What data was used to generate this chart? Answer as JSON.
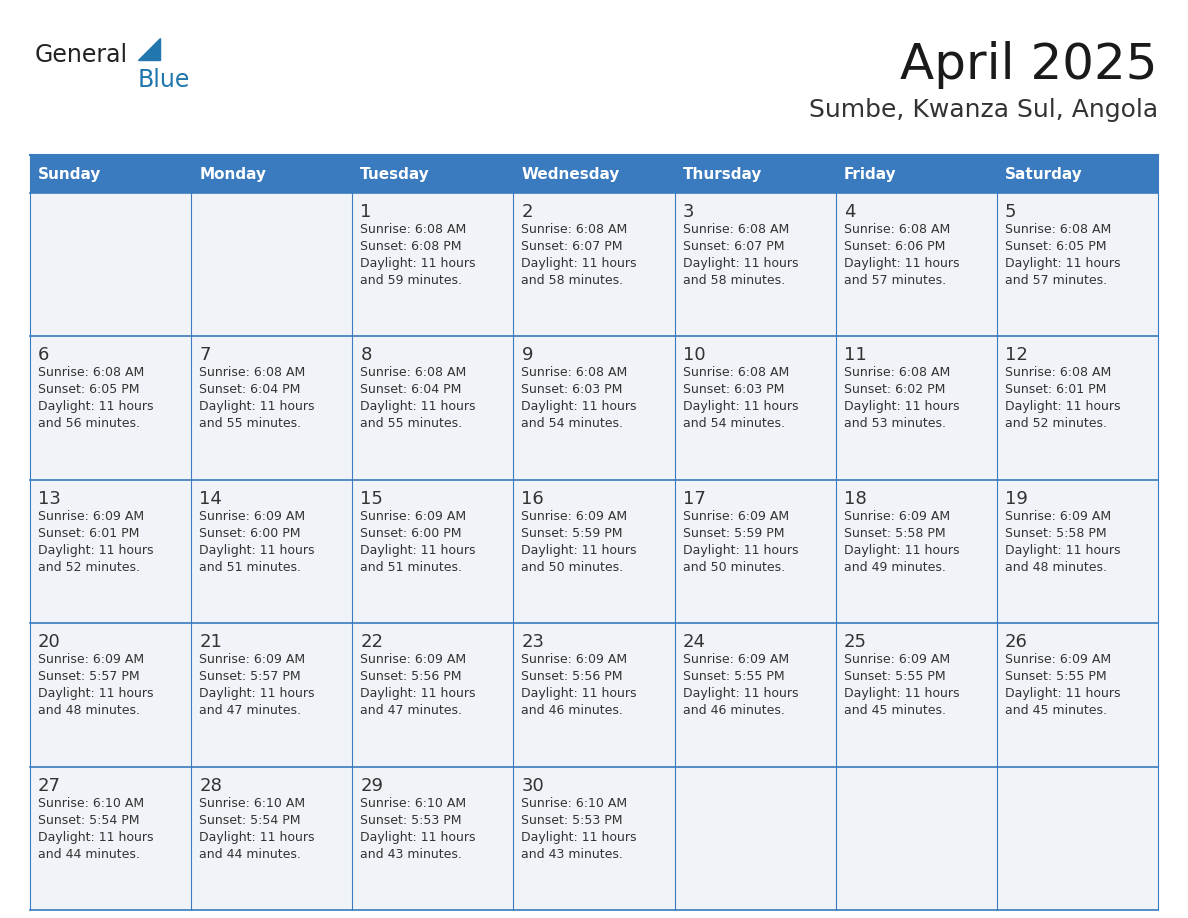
{
  "title": "April 2025",
  "subtitle": "Sumbe, Kwanza Sul, Angola",
  "header_bg": "#3a7abf",
  "header_text_color": "#FFFFFF",
  "cell_bg": "#f0f4f8",
  "cell_bg_white": "#FFFFFF",
  "border_color": "#3a7abf",
  "text_color": "#333333",
  "day_number_color": "#333333",
  "day_headers": [
    "Sunday",
    "Monday",
    "Tuesday",
    "Wednesday",
    "Thursday",
    "Friday",
    "Saturday"
  ],
  "weeks": [
    [
      {
        "day": "",
        "info": ""
      },
      {
        "day": "",
        "info": ""
      },
      {
        "day": "1",
        "info": "Sunrise: 6:08 AM\nSunset: 6:08 PM\nDaylight: 11 hours\nand 59 minutes."
      },
      {
        "day": "2",
        "info": "Sunrise: 6:08 AM\nSunset: 6:07 PM\nDaylight: 11 hours\nand 58 minutes."
      },
      {
        "day": "3",
        "info": "Sunrise: 6:08 AM\nSunset: 6:07 PM\nDaylight: 11 hours\nand 58 minutes."
      },
      {
        "day": "4",
        "info": "Sunrise: 6:08 AM\nSunset: 6:06 PM\nDaylight: 11 hours\nand 57 minutes."
      },
      {
        "day": "5",
        "info": "Sunrise: 6:08 AM\nSunset: 6:05 PM\nDaylight: 11 hours\nand 57 minutes."
      }
    ],
    [
      {
        "day": "6",
        "info": "Sunrise: 6:08 AM\nSunset: 6:05 PM\nDaylight: 11 hours\nand 56 minutes."
      },
      {
        "day": "7",
        "info": "Sunrise: 6:08 AM\nSunset: 6:04 PM\nDaylight: 11 hours\nand 55 minutes."
      },
      {
        "day": "8",
        "info": "Sunrise: 6:08 AM\nSunset: 6:04 PM\nDaylight: 11 hours\nand 55 minutes."
      },
      {
        "day": "9",
        "info": "Sunrise: 6:08 AM\nSunset: 6:03 PM\nDaylight: 11 hours\nand 54 minutes."
      },
      {
        "day": "10",
        "info": "Sunrise: 6:08 AM\nSunset: 6:03 PM\nDaylight: 11 hours\nand 54 minutes."
      },
      {
        "day": "11",
        "info": "Sunrise: 6:08 AM\nSunset: 6:02 PM\nDaylight: 11 hours\nand 53 minutes."
      },
      {
        "day": "12",
        "info": "Sunrise: 6:08 AM\nSunset: 6:01 PM\nDaylight: 11 hours\nand 52 minutes."
      }
    ],
    [
      {
        "day": "13",
        "info": "Sunrise: 6:09 AM\nSunset: 6:01 PM\nDaylight: 11 hours\nand 52 minutes."
      },
      {
        "day": "14",
        "info": "Sunrise: 6:09 AM\nSunset: 6:00 PM\nDaylight: 11 hours\nand 51 minutes."
      },
      {
        "day": "15",
        "info": "Sunrise: 6:09 AM\nSunset: 6:00 PM\nDaylight: 11 hours\nand 51 minutes."
      },
      {
        "day": "16",
        "info": "Sunrise: 6:09 AM\nSunset: 5:59 PM\nDaylight: 11 hours\nand 50 minutes."
      },
      {
        "day": "17",
        "info": "Sunrise: 6:09 AM\nSunset: 5:59 PM\nDaylight: 11 hours\nand 50 minutes."
      },
      {
        "day": "18",
        "info": "Sunrise: 6:09 AM\nSunset: 5:58 PM\nDaylight: 11 hours\nand 49 minutes."
      },
      {
        "day": "19",
        "info": "Sunrise: 6:09 AM\nSunset: 5:58 PM\nDaylight: 11 hours\nand 48 minutes."
      }
    ],
    [
      {
        "day": "20",
        "info": "Sunrise: 6:09 AM\nSunset: 5:57 PM\nDaylight: 11 hours\nand 48 minutes."
      },
      {
        "day": "21",
        "info": "Sunrise: 6:09 AM\nSunset: 5:57 PM\nDaylight: 11 hours\nand 47 minutes."
      },
      {
        "day": "22",
        "info": "Sunrise: 6:09 AM\nSunset: 5:56 PM\nDaylight: 11 hours\nand 47 minutes."
      },
      {
        "day": "23",
        "info": "Sunrise: 6:09 AM\nSunset: 5:56 PM\nDaylight: 11 hours\nand 46 minutes."
      },
      {
        "day": "24",
        "info": "Sunrise: 6:09 AM\nSunset: 5:55 PM\nDaylight: 11 hours\nand 46 minutes."
      },
      {
        "day": "25",
        "info": "Sunrise: 6:09 AM\nSunset: 5:55 PM\nDaylight: 11 hours\nand 45 minutes."
      },
      {
        "day": "26",
        "info": "Sunrise: 6:09 AM\nSunset: 5:55 PM\nDaylight: 11 hours\nand 45 minutes."
      }
    ],
    [
      {
        "day": "27",
        "info": "Sunrise: 6:10 AM\nSunset: 5:54 PM\nDaylight: 11 hours\nand 44 minutes."
      },
      {
        "day": "28",
        "info": "Sunrise: 6:10 AM\nSunset: 5:54 PM\nDaylight: 11 hours\nand 44 minutes."
      },
      {
        "day": "29",
        "info": "Sunrise: 6:10 AM\nSunset: 5:53 PM\nDaylight: 11 hours\nand 43 minutes."
      },
      {
        "day": "30",
        "info": "Sunrise: 6:10 AM\nSunset: 5:53 PM\nDaylight: 11 hours\nand 43 minutes."
      },
      {
        "day": "",
        "info": ""
      },
      {
        "day": "",
        "info": ""
      },
      {
        "day": "",
        "info": ""
      }
    ]
  ],
  "logo_color1": "#222222",
  "logo_color2": "#2176AE",
  "logo_triangle_color": "#2176AE",
  "title_fontsize": 36,
  "subtitle_fontsize": 18,
  "header_fontsize": 11,
  "day_num_fontsize": 13,
  "info_fontsize": 9
}
